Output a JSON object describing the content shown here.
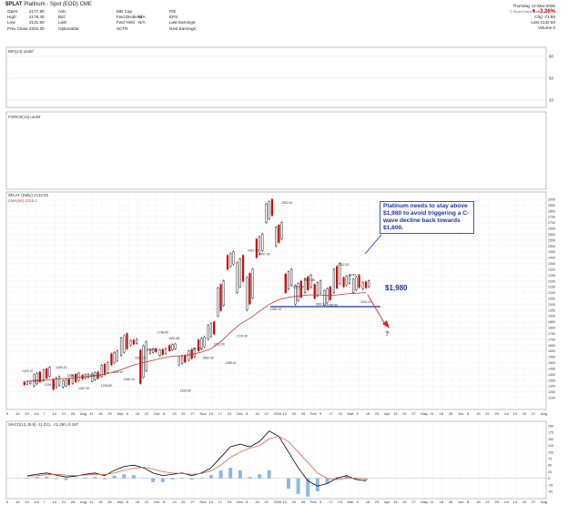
{
  "header": {
    "symbol": "$PLAT",
    "name": "Platinum - Spot (EOD) CME",
    "date": "Thursday 12-Mar-2026",
    "change_pct": "▼ -3.26%",
    "chg_label": "Chg",
    "chg_value": "-71.80",
    "last_label": "Last",
    "last_value": "2132.50",
    "volume_label": "Volume",
    "volume_value": "0",
    "watermark": "© StockCharts.com",
    "col1": [
      [
        "Open:",
        "2177.90"
      ],
      [
        "High:",
        "2178.40"
      ],
      [
        "Low:",
        "2131.50"
      ],
      [
        "Prev Close:",
        "2204.30"
      ]
    ],
    "col2": [
      "Ask:",
      "Bid:",
      "Last:",
      "Optionable:"
    ],
    "col3": [
      [
        "Mkt Cap",
        ""
      ],
      [
        "Fwd Dividend",
        "N/A"
      ],
      [
        "Fwd Yield",
        "N/A"
      ],
      [
        "SCTR",
        ""
      ]
    ],
    "col4": [
      "P/E",
      "EPS",
      "Last Earnings:",
      "Next Earnings:"
    ]
  },
  "panels": {
    "mfi_label": "MFI(14) undef",
    "force_label": "FORCE(13) undef",
    "price_label": "$PLAT (Daily) 2132.50",
    "ema_label": "EMA(50) 2015.2",
    "macd_label": "MACD(12,26,9) -11.021, -31.290, 0.267"
  },
  "annotations": {
    "callout": "Platinum needs to stay above $1,980 to avoid triggering a C-wave decline back towards $1,600.",
    "level": "$1,980",
    "question": "?"
  },
  "colors": {
    "up": "#000000",
    "down": "#cc0000",
    "ema": "#cc3333",
    "support": "#1a33a6",
    "macd_hist": "#6fa8dc",
    "macd_signal": "#e06040"
  },
  "chart_data": {
    "type": "line",
    "y_axis_ticks": [
      1200,
      1250,
      1300,
      1350,
      1400,
      1450,
      1500,
      1550,
      1600,
      1650,
      1700,
      1750,
      1800,
      1850,
      1900,
      1950,
      2000,
      2050,
      2100,
      2150,
      2200,
      2250,
      2300,
      2350,
      2400,
      2450,
      2500,
      2550,
      2600,
      2650,
      2700,
      2750,
      2800,
      2850,
      2900
    ],
    "mfi_ticks": [
      80,
      50,
      20
    ],
    "macd_ticks": [
      200,
      175,
      150,
      125,
      100,
      75,
      50,
      25,
      0,
      -25,
      -50
    ],
    "x_ticks": [
      "9",
      "16",
      "23",
      "Jul",
      "7",
      "14",
      "21",
      "28",
      "Aug",
      "11",
      "18",
      "25",
      "Sep",
      "8",
      "15",
      "22",
      "Oct",
      "6",
      "13",
      "20",
      "27",
      "Nov",
      "10",
      "17",
      "24",
      "Dec",
      "8",
      "15",
      "22",
      "2026",
      "12",
      "20",
      "26",
      "Feb",
      "9",
      "17",
      "23",
      "Mar",
      "9",
      "16",
      "23",
      "Apr",
      "13",
      "20",
      "27",
      "May",
      "11",
      "18",
      "26",
      "Jun",
      "8",
      "15",
      "22",
      "29",
      "Jul",
      "13",
      "20",
      "27",
      "Aug"
    ],
    "price_labels": [
      {
        "x": "Jul",
        "y": 1420,
        "t": "1423.70"
      },
      {
        "x": "Jul 7",
        "y": 1335,
        "t": "1332.00"
      },
      {
        "x": "Jul",
        "y": 1300,
        "t": "1294.20"
      },
      {
        "x": "Jul 14",
        "y": 1450,
        "t": "1455.20"
      },
      {
        "x": "Jul 14",
        "y": 1380,
        "t": "1380.40"
      },
      {
        "x": "Jul 28",
        "y": 1270,
        "t": "1267.90"
      },
      {
        "x": "Aug 11",
        "y": 1380,
        "t": "1364.00"
      },
      {
        "x": "Aug 11",
        "y": 1295,
        "t": "1293.80"
      },
      {
        "x": "Aug 25",
        "y": 1410,
        "t": "1409.10"
      },
      {
        "x": "Sep 8",
        "y": 1350,
        "t": "1340.10"
      },
      {
        "x": "Sep 22",
        "y": 1530,
        "t": "1521.00"
      },
      {
        "x": "Oct",
        "y": 1600,
        "t": "1598.70"
      },
      {
        "x": "Oct",
        "y": 1750,
        "t": "1748.40"
      },
      {
        "x": "Oct",
        "y": 1700,
        "t": "1691.60"
      },
      {
        "x": "Oct 13",
        "y": 1250,
        "t": "1325.80"
      },
      {
        "x": "Oct 20",
        "y": 1610,
        "t": "1617.00"
      },
      {
        "x": "Nov",
        "y": 1530,
        "t": "1580.50"
      },
      {
        "x": "Nov 10",
        "y": 1650,
        "t": "1651.50"
      },
      {
        "x": "Nov 17",
        "y": 1490,
        "t": "1485.20"
      },
      {
        "x": "Nov 24",
        "y": 1720,
        "t": "1724.30"
      },
      {
        "x": "Dec 15",
        "y": 2450,
        "t": "2417.40"
      },
      {
        "x": "Dec 22",
        "y": 2420,
        "t": "2407.30"
      },
      {
        "x": "Dec 22",
        "y": 1950,
        "t": "1950.10"
      },
      {
        "x": "2026 12",
        "y": 2860,
        "t": "2902.40"
      },
      {
        "x": "Jan 20",
        "y": 2140,
        "t": "2153.10"
      },
      {
        "x": "Feb 9",
        "y": 2200,
        "t": "2167.80"
      },
      {
        "x": "Feb",
        "y": 1990,
        "t": "1962.10"
      },
      {
        "x": "Feb 9",
        "y": 1985,
        "t": "1998.50"
      },
      {
        "x": "Feb 17",
        "y": 2330,
        "t": "2352.20"
      },
      {
        "x": "Mar",
        "y": 2240,
        "t": "2245.70"
      },
      {
        "x": "Feb 23",
        "y": 2010,
        "t": "2001.00"
      }
    ],
    "support_level": 1980,
    "projection_target": 1600,
    "last": 2132.5
  }
}
